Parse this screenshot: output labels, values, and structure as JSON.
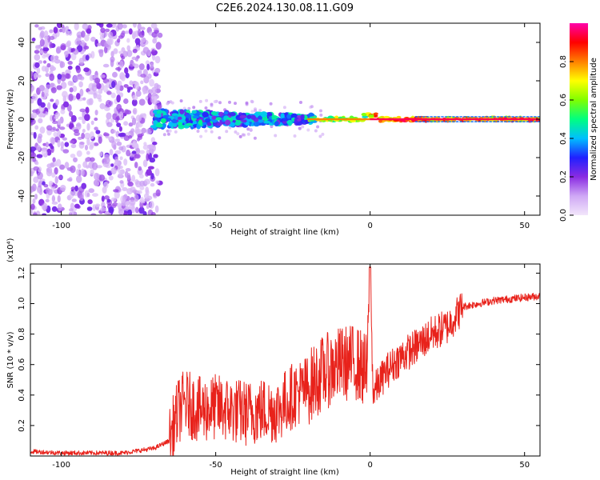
{
  "chart_data": [
    {
      "type": "heatmap",
      "title": "C2E6.2024.130.08.11.G09",
      "xlabel": "Height of straight line (km)",
      "ylabel": "Frequency (Hz)",
      "xlim": [
        -110,
        55
      ],
      "ylim": [
        -50,
        50
      ],
      "xticks": [
        "-100",
        "-50",
        "0",
        "50"
      ],
      "yticks": [
        "40",
        "20",
        "0",
        "-20",
        "-40"
      ],
      "colorbar": {
        "label": "Normalized spectral amplitude",
        "range": [
          0.0,
          1.0
        ],
        "ticks": [
          "0.0",
          "0.2",
          "0.4",
          "0.6",
          "0.8"
        ],
        "colors": [
          "#f2e6fb",
          "#cfa8f5",
          "#8a2be2",
          "#2020ff",
          "#00bfff",
          "#00ff80",
          "#80ff00",
          "#ffff00",
          "#ff8000",
          "#ff0000",
          "#ff00aa"
        ]
      },
      "regions": [
        {
          "x_range": [
            -110,
            -70
          ],
          "freq_spread": 50,
          "level": 0.15
        },
        {
          "x_range": [
            -70,
            -20
          ],
          "freq_spread": 5,
          "level": 0.5
        },
        {
          "x_range": [
            -20,
            55
          ],
          "freq_spread": 1,
          "level": 0.95
        }
      ]
    },
    {
      "type": "line",
      "scale_note": "(x10⁴)",
      "xlabel": "Height of straight line (km)",
      "ylabel": "SNR (10 * v/v)",
      "xlim": [
        -110,
        55
      ],
      "ylim": [
        0.0,
        1.26
      ],
      "xticks": [
        "-100",
        "-50",
        "0",
        "50"
      ],
      "yticks": [
        "0.2",
        "0.4",
        "0.6",
        "0.8",
        "1.0",
        "1.2"
      ],
      "color": "#e8221b",
      "x": [
        -110,
        -100,
        -90,
        -80,
        -70,
        -65,
        -62,
        -60,
        -55,
        -50,
        -45,
        -40,
        -35,
        -30,
        -25,
        -20,
        -15,
        -10,
        -5,
        -1,
        0,
        1,
        2,
        5,
        10,
        15,
        20,
        25,
        30,
        35,
        40,
        45,
        50,
        55
      ],
      "y": [
        0.03,
        0.02,
        0.02,
        0.02,
        0.05,
        0.1,
        0.3,
        0.35,
        0.3,
        0.32,
        0.3,
        0.28,
        0.3,
        0.3,
        0.4,
        0.45,
        0.55,
        0.6,
        0.62,
        0.55,
        1.2,
        0.4,
        0.45,
        0.55,
        0.65,
        0.72,
        0.8,
        0.85,
        0.98,
        1.0,
        1.02,
        1.03,
        1.04,
        1.05
      ]
    }
  ]
}
